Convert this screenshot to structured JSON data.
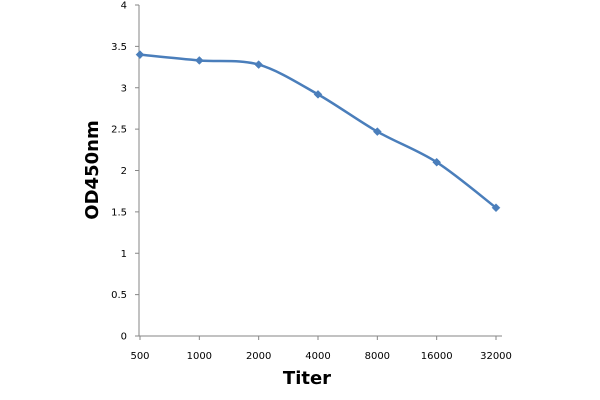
{
  "chart_data": {
    "type": "line",
    "title": "",
    "xlabel": "Titer",
    "ylabel": "OD450nm",
    "categories": [
      "500",
      "1000",
      "2000",
      "4000",
      "8000",
      "16000",
      "32000"
    ],
    "series": [
      {
        "color": "#4a7ebb",
        "marker": "diamond",
        "values": [
          3.4,
          3.33,
          3.28,
          2.92,
          2.47,
          2.1,
          1.55
        ]
      }
    ],
    "ylim": [
      0,
      4
    ],
    "yticks": [
      "0",
      "0.5",
      "1",
      "1.5",
      "2",
      "2.5",
      "3",
      "3.5",
      "4"
    ],
    "grid": false,
    "legend": "none"
  }
}
